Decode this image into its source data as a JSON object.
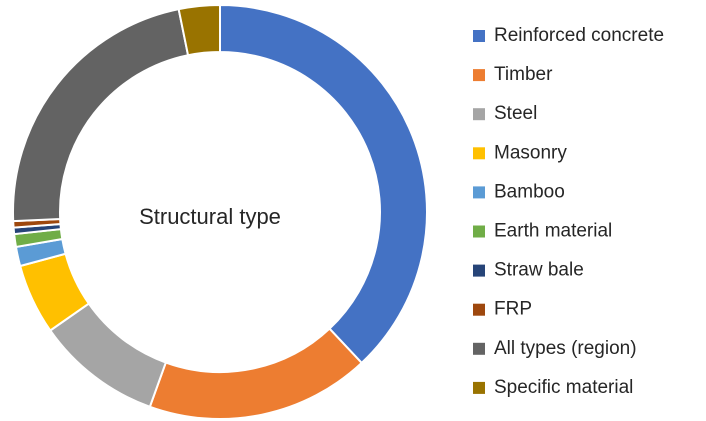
{
  "chart_data": {
    "type": "donut",
    "title": "Structural type",
    "categories": [
      "Reinforced concrete",
      "Timber",
      "Steel",
      "Masonry",
      "Bamboo",
      "Earth material",
      "Straw bale",
      "FRP",
      "All types (region)",
      "Specific material"
    ],
    "values": [
      38,
      17.5,
      9.8,
      5.5,
      1.5,
      1,
      0.5,
      0.5,
      22.5,
      3.2
    ],
    "colors": [
      "#4472c4",
      "#ed7d31",
      "#a5a5a5",
      "#ffc000",
      "#5b9bd5",
      "#70ad47",
      "#264478",
      "#9e480e",
      "#636363",
      "#997300"
    ],
    "legend": "right"
  }
}
